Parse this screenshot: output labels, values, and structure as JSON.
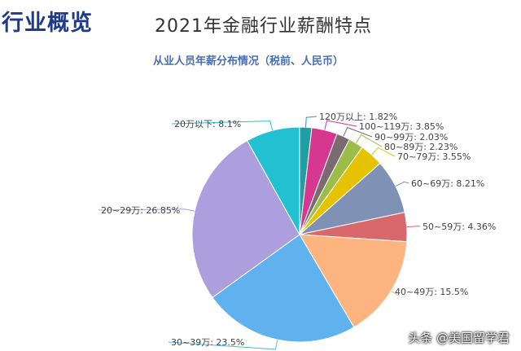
{
  "header": {
    "section_title": "行业概览",
    "page_title": "2021年金融行业薪酬特点"
  },
  "watermark": "头条 @美国留学君",
  "chart_data": {
    "type": "pie",
    "title": "从业人员年薪分布情况（税前、人民币）",
    "legend": "none",
    "slices": [
      {
        "label": "120万以上",
        "value": 1.82,
        "display": "120万以上: 1.82%",
        "color": "#1f9ea4"
      },
      {
        "label": "100~119万",
        "value": 3.85,
        "display": "100~119万: 3.85%",
        "color": "#d6388f"
      },
      {
        "label": "90~99万",
        "value": 2.03,
        "display": "90~99万: 2.03%",
        "color": "#7a6b70"
      },
      {
        "label": "80~89万",
        "value": 2.23,
        "display": "80~89万: 2.23%",
        "color": "#9cbd4a"
      },
      {
        "label": "70~79万",
        "value": 3.55,
        "display": "70~79万: 3.55%",
        "color": "#e6c300"
      },
      {
        "label": "60~69万",
        "value": 8.21,
        "display": "60~69万: 8.21%",
        "color": "#7f91b5"
      },
      {
        "label": "50~59万",
        "value": 4.36,
        "display": "50~59万: 4.36%",
        "color": "#d9686c"
      },
      {
        "label": "40~49万",
        "value": 15.5,
        "display": "40~49万: 15.5%",
        "color": "#fdb47f"
      },
      {
        "label": "30~39万",
        "value": 23.5,
        "display": "30~39万: 23.5%",
        "color": "#5fb2ee"
      },
      {
        "label": "20~29万",
        "value": 26.85,
        "display": "20~29万: 26.85%",
        "color": "#ad9fdd"
      },
      {
        "label": "20万以下",
        "value": 8.1,
        "display": "20万以下: 8.1%",
        "color": "#22c1d2"
      }
    ]
  }
}
